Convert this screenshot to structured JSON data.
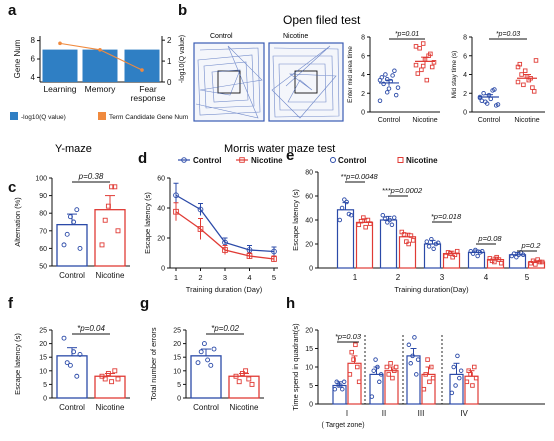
{
  "colors": {
    "control": "#2b4aa8",
    "nicotine": "#e03b35",
    "bar_blue": "#2f7fc4",
    "line_orange": "#f08a3e",
    "track": "#3a5cb5"
  },
  "headers": {
    "open_field": "Open filed test",
    "y_maze": "Y-maze",
    "morris": "Morris water maze test"
  },
  "chart_data": [
    {
      "id": "a",
      "type": "bar",
      "panel_label": "a",
      "categories": [
        "Learning",
        "Memory",
        "Fear response"
      ],
      "series": [
        {
          "name": "-log10(Q value)",
          "values": [
            1.55,
            1.55,
            1.55
          ]
        },
        {
          "name": "Term Candidate Gene Num",
          "values": [
            7.7,
            7.0,
            4.8
          ],
          "type": "line"
        }
      ],
      "ylabel_left": "Gene Num",
      "ylabel_right": "-log10(Q value)",
      "yticks_left": [
        "8",
        "6",
        "4"
      ],
      "yticks_right": [
        "2",
        "1",
        "0"
      ]
    },
    {
      "id": "b_images",
      "type": "other",
      "panel_label": "b",
      "labels": [
        "Control",
        "Nicotine"
      ]
    },
    {
      "id": "b1",
      "type": "scatter",
      "categories": [
        "Control",
        "Nicotine"
      ],
      "values": [
        [
          3.4,
          2.1,
          4.4,
          3.7,
          2.5,
          1.8,
          3.0,
          3.3,
          2.6,
          4.0,
          3.9,
          1.2,
          3.5
        ],
        [
          5.0,
          7.3,
          6.2,
          4.1,
          5.6,
          4.8,
          6.8,
          3.4,
          5.3,
          4.5,
          6.0,
          7.0,
          4.9
        ]
      ],
      "means": [
        3.1,
        5.4
      ],
      "sem": [
        0.3,
        0.45
      ],
      "ylabel": "Enter mid area time",
      "yticks": [
        "0",
        "2",
        "4",
        "6",
        "8"
      ],
      "ylim": [
        0,
        8
      ],
      "annotation": "*p=0.01"
    },
    {
      "id": "b2",
      "type": "scatter",
      "categories": [
        "Control",
        "Nicotine"
      ],
      "values": [
        [
          1.6,
          0.9,
          2.4,
          1.2,
          1.8,
          0.7,
          2.0,
          1.4,
          0.8,
          1.1,
          2.3,
          1.5
        ],
        [
          3.2,
          4.4,
          2.6,
          5.1,
          3.8,
          2.2,
          4.0,
          3.4,
          5.5,
          2.9,
          3.6,
          4.8
        ]
      ],
      "means": [
        1.6,
        3.6
      ],
      "sem": [
        0.25,
        0.4
      ],
      "ylabel": "Mid stay time (s)",
      "yticks": [
        "0",
        "2",
        "4",
        "6",
        "8"
      ],
      "ylim": [
        0,
        8
      ],
      "annotation": "*p=0.03"
    },
    {
      "id": "c",
      "type": "bar",
      "panel_label": "c",
      "categories": [
        "Control",
        "Nicotine"
      ],
      "values": [
        73.5,
        82
      ],
      "sem": [
        6,
        8
      ],
      "points": [
        [
          62,
          68,
          78,
          75,
          82,
          60
        ],
        [
          62,
          76,
          84,
          95,
          95,
          70
        ]
      ],
      "ylabel": "Alternation (%)",
      "yticks": [
        "50",
        "60",
        "70",
        "80",
        "90",
        "100"
      ],
      "ylim": [
        50,
        100
      ],
      "annotation": "p=0.38"
    },
    {
      "id": "d",
      "type": "line",
      "panel_label": "d",
      "x": [
        1,
        2,
        3,
        4,
        5
      ],
      "series": [
        {
          "name": "Control",
          "values": [
            48.5,
            39,
            17,
            12,
            11
          ],
          "sem": [
            8,
            4,
            3,
            3,
            3
          ]
        },
        {
          "name": "Nicotine",
          "values": [
            37.5,
            26,
            12,
            8,
            6
          ],
          "sem": [
            6,
            7,
            3,
            2,
            2
          ]
        }
      ],
      "xlabel": "Training duration (Day)",
      "ylabel": "Escape latency (s)",
      "yticks": [
        "0",
        "20",
        "40",
        "60"
      ],
      "ylim": [
        0,
        60
      ]
    },
    {
      "id": "e",
      "type": "bar",
      "panel_label": "e",
      "categories": [
        "1",
        "2",
        "3",
        "4",
        "5"
      ],
      "series": [
        {
          "name": "Control",
          "values": [
            48.5,
            40,
            20,
            13,
            11
          ],
          "sem": [
            6,
            3,
            3,
            2,
            2
          ],
          "points": [
            [
              40,
              50,
              57,
              55,
              45,
              44
            ],
            [
              44,
              41,
              38,
              40,
              36,
              42
            ],
            [
              22,
              18,
              24,
              16,
              20,
              21
            ],
            [
              14,
              12,
              15,
              10,
              13,
              14
            ],
            [
              10,
              12,
              9,
              11,
              13,
              11
            ]
          ]
        },
        {
          "name": "Nicotine",
          "values": [
            38,
            26,
            12,
            7,
            5
          ],
          "sem": [
            3,
            3,
            2,
            2,
            1
          ],
          "points": [
            [
              36,
              39,
              42,
              34,
              40,
              37
            ],
            [
              30,
              28,
              22,
              20,
              27,
              23
            ],
            [
              10,
              13,
              12,
              9,
              11,
              14
            ],
            [
              8,
              6,
              5,
              9,
              7,
              4
            ],
            [
              4,
              6,
              3,
              7,
              5,
              5
            ]
          ]
        }
      ],
      "annotations": [
        "**p=0.0048",
        "***p=0.0002",
        "*p=0.018",
        "p=0.08",
        "p=0.2"
      ],
      "xlabel": "Training duration(Day)",
      "ylabel": "Escape latency (s)",
      "yticks": [
        "0",
        "20",
        "40",
        "60",
        "80"
      ],
      "ylim": [
        0,
        80
      ]
    },
    {
      "id": "f",
      "type": "bar",
      "panel_label": "f",
      "categories": [
        "Control",
        "Nicotine"
      ],
      "values": [
        15.5,
        8
      ],
      "sem": [
        3,
        1
      ],
      "points": [
        [
          22,
          13,
          12,
          17,
          8,
          16
        ],
        [
          8,
          7,
          9,
          6,
          10,
          7
        ]
      ],
      "ylabel": "Escape latency (s)",
      "yticks": [
        "0",
        "5",
        "10",
        "15",
        "20",
        "25"
      ],
      "ylim": [
        0,
        25
      ],
      "annotation": "*p=0.04"
    },
    {
      "id": "g",
      "type": "bar",
      "panel_label": "g",
      "categories": [
        "Control",
        "Nicotine"
      ],
      "values": [
        15.5,
        8
      ],
      "sem": [
        2.5,
        1
      ],
      "points": [
        [
          13,
          17,
          20,
          14,
          12,
          18
        ],
        [
          8,
          6,
          9,
          10,
          7,
          5
        ]
      ],
      "ylabel": "Total number of errors",
      "yticks": [
        "0",
        "5",
        "10",
        "15",
        "20",
        "25"
      ],
      "ylim": [
        0,
        25
      ],
      "annotation": "*p=0.02"
    },
    {
      "id": "h",
      "type": "bar",
      "panel_label": "h",
      "categories": [
        "I",
        "II",
        "III",
        "IV"
      ],
      "series": [
        {
          "name": "Control",
          "values": [
            5,
            8,
            13,
            8
          ],
          "sem": [
            1,
            2,
            2,
            3
          ],
          "points": [
            [
              4,
              6,
              5,
              5,
              4,
              6
            ],
            [
              2,
              9,
              12,
              10,
              6,
              8
            ],
            [
              16,
              11,
              13,
              18,
              8,
              12
            ],
            [
              3,
              10,
              5,
              13,
              7,
              9
            ]
          ]
        },
        {
          "name": "Nicotine",
          "values": [
            11,
            9,
            8,
            7.5
          ],
          "sem": [
            2,
            1,
            2,
            1.5
          ],
          "points": [
            [
              8,
              14,
              12,
              16,
              10,
              6
            ],
            [
              10,
              8,
              11,
              7,
              9,
              10
            ],
            [
              4,
              8,
              12,
              6,
              10,
              7
            ],
            [
              6,
              9,
              8,
              5,
              10,
              7
            ]
          ]
        }
      ],
      "annotations": [
        "*p=0.03"
      ],
      "xlabel_extra": "( Target zone)",
      "ylabel": "Time spend in quadrant(s)",
      "yticks": [
        "0",
        "5",
        "10",
        "15",
        "20"
      ],
      "ylim": [
        0,
        20
      ]
    }
  ]
}
